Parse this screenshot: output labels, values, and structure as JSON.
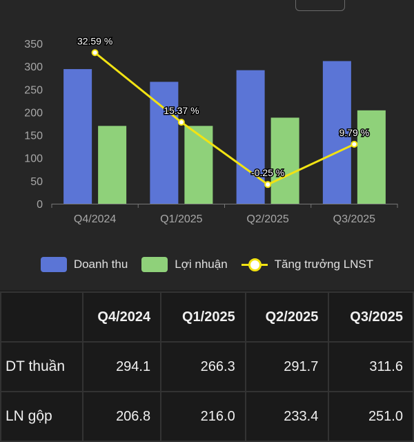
{
  "colors": {
    "revenue": "#5b75d6",
    "profit": "#8fd17a",
    "growth": "#f2e313"
  },
  "chart_data": {
    "type": "bar",
    "categories": [
      "Q4/2024",
      "Q1/2025",
      "Q2/2025",
      "Q3/2025"
    ],
    "series": [
      {
        "name": "Doanh thu",
        "type": "bar",
        "values": [
          294.1,
          266.3,
          291.7,
          311.6
        ]
      },
      {
        "name": "Lợi nhuận",
        "type": "bar",
        "values": [
          170,
          170,
          188,
          204
        ]
      },
      {
        "name": "Tăng trưởng LNST",
        "type": "line",
        "values": [
          330,
          178,
          42,
          130
        ],
        "labels": [
          "32.59 %",
          "15.37 %",
          "-0.25 %",
          "9.79 %"
        ]
      }
    ],
    "y_ticks": [
      0,
      50,
      100,
      150,
      200,
      250,
      300,
      350
    ],
    "ylim": [
      0,
      350
    ],
    "grid": false,
    "legend_position": "bottom"
  },
  "legend": {
    "revenue": "Doanh thu",
    "profit": "Lợi nhuận",
    "growth": "Tăng trưởng LNST"
  },
  "table": {
    "columns": [
      "Q4/2024",
      "Q1/2025",
      "Q2/2025",
      "Q3/2025"
    ],
    "rows": [
      {
        "label": "DT thuần",
        "values": [
          "294.1",
          "266.3",
          "291.7",
          "311.6"
        ]
      },
      {
        "label": "LN gộp",
        "values": [
          "206.8",
          "216.0",
          "233.4",
          "251.0"
        ]
      }
    ]
  }
}
